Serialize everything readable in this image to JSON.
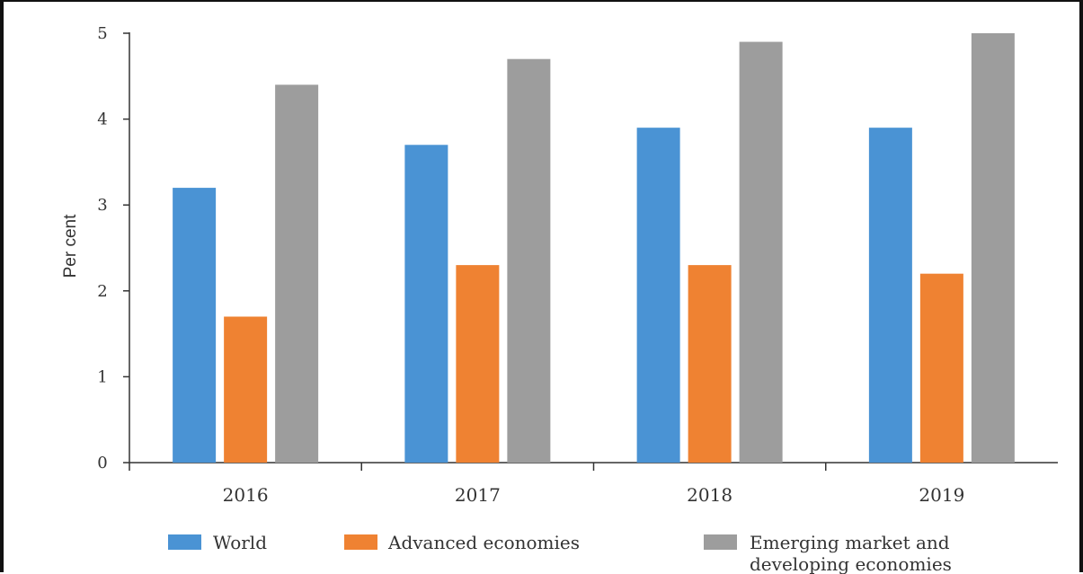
{
  "chart_data": {
    "type": "bar",
    "title": "",
    "xlabel": "",
    "ylabel": "Per cent",
    "categories": [
      "2016",
      "2017",
      "2018",
      "2019"
    ],
    "series": [
      {
        "name": "World",
        "color": "#4a93d4",
        "values": [
          3.2,
          3.7,
          3.9,
          3.9
        ]
      },
      {
        "name": "Advanced economies",
        "color": "#ef8232",
        "values": [
          1.7,
          2.3,
          2.3,
          2.2
        ]
      },
      {
        "name": "Emerging market and developing economies",
        "color": "#9d9d9d",
        "values": [
          4.4,
          4.7,
          4.9,
          5.0
        ]
      }
    ],
    "ylim": [
      0,
      5
    ],
    "yticks": [
      "0",
      "1",
      "2",
      "3",
      "4",
      "5"
    ],
    "grid": false,
    "legend_position": "bottom"
  },
  "legend": {
    "world": "World",
    "advanced": "Advanced economies",
    "emerging_line1": "Emerging market and",
    "emerging_line2": "developing economies"
  }
}
